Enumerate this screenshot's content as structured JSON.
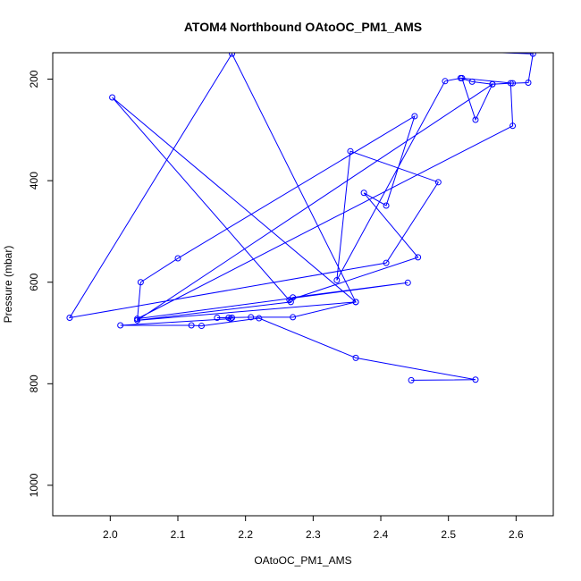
{
  "chart_data": {
    "type": "line",
    "title": "ATOM4 Northbound OAtoOC_PM1_AMS",
    "xlabel": "OAtoOC_PM1_AMS",
    "ylabel": "Pressure (mbar)",
    "xlim": [
      1.915,
      2.655
    ],
    "ylim": [
      1060,
      148
    ],
    "y_inverted": true,
    "x_ticks": [
      "2.0",
      "2.1",
      "2.2",
      "2.3",
      "2.4",
      "2.5",
      "2.6"
    ],
    "y_ticks": [
      "200",
      "400",
      "600",
      "800",
      "1000"
    ],
    "grid": false,
    "series": [
      {
        "color": "#0000ff",
        "marker": "open-circle",
        "points": [
          [
            2.445,
            793
          ],
          [
            2.54,
            792
          ],
          [
            2.363,
            749
          ],
          [
            2.22,
            671
          ],
          [
            2.135,
            686
          ],
          [
            2.12,
            685
          ],
          [
            2.015,
            685
          ],
          [
            2.178,
            672
          ],
          [
            2.175,
            670
          ],
          [
            2.18,
            670
          ],
          [
            2.158,
            670
          ],
          [
            2.208,
            669
          ],
          [
            2.27,
            669
          ],
          [
            2.363,
            639
          ],
          [
            2.003,
            236
          ],
          [
            2.267,
            639
          ],
          [
            2.04,
            675
          ],
          [
            2.045,
            600
          ],
          [
            2.1,
            553
          ],
          [
            2.45,
            273
          ],
          [
            2.408,
            449
          ],
          [
            2.375,
            424
          ],
          [
            2.455,
            551
          ],
          [
            2.265,
            635
          ],
          [
            2.27,
            630
          ],
          [
            2.44,
            601
          ],
          [
            2.04,
            672
          ],
          [
            2.595,
            292
          ],
          [
            2.592,
            208
          ],
          [
            2.565,
            210
          ],
          [
            2.535,
            205
          ],
          [
            2.518,
            198
          ],
          [
            2.495,
            204
          ],
          [
            2.335,
            596
          ],
          [
            2.355,
            342
          ],
          [
            2.485,
            403
          ],
          [
            2.408,
            562
          ],
          [
            1.94,
            670
          ],
          [
            2.18,
            150
          ],
          [
            2.363,
            639
          ],
          [
            2.04,
            675
          ],
          [
            2.565,
            210
          ],
          [
            2.54,
            280
          ],
          [
            2.52,
            198
          ],
          [
            2.595,
            208
          ],
          [
            2.618,
            207
          ],
          [
            2.625,
            150
          ]
        ],
        "line_extensions": [
          [
            2.62,
            150
          ],
          [
            2.58,
            148
          ]
        ]
      }
    ]
  }
}
